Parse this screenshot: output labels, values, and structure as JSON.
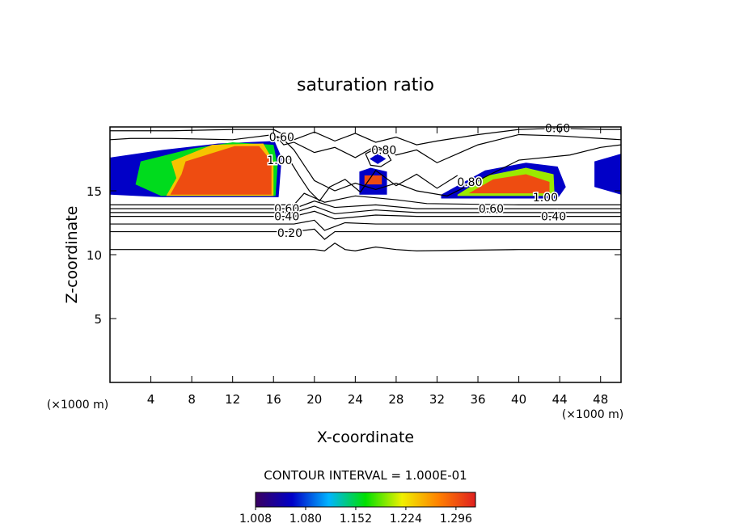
{
  "chart_data": {
    "type": "contour",
    "title": "saturation ratio",
    "x_label": "X-coordinate",
    "y_label": "Z-coordinate",
    "x_unit": "(×1000 m)",
    "y_unit": "(×1000 m)",
    "xlim": [
      0,
      50
    ],
    "ylim": [
      0,
      20
    ],
    "xticks": [
      4,
      8,
      12,
      16,
      20,
      24,
      28,
      32,
      36,
      40,
      44,
      48
    ],
    "yticks": [
      5,
      10,
      15
    ],
    "line_color": "#000000",
    "contours": [
      {
        "level": 0.1,
        "x": [
          0,
          10,
          20,
          21,
          22,
          23,
          24,
          26,
          28,
          30,
          40,
          50
        ],
        "y": [
          10.4,
          10.4,
          10.4,
          10.3,
          10.9,
          10.4,
          10.3,
          10.6,
          10.4,
          10.3,
          10.4,
          10.4
        ]
      },
      {
        "level": 0.2,
        "x": [
          0,
          10,
          18,
          20,
          21,
          22,
          24,
          30,
          40,
          50
        ],
        "y": [
          11.8,
          11.8,
          11.8,
          12.0,
          11.2,
          11.8,
          11.8,
          11.8,
          11.8,
          11.8
        ]
      },
      {
        "level": 0.3,
        "x": [
          0,
          10,
          18,
          20,
          21,
          23,
          26,
          30,
          40,
          50
        ],
        "y": [
          12.4,
          12.4,
          12.4,
          12.7,
          11.9,
          12.5,
          12.4,
          12.4,
          12.4,
          12.4
        ]
      },
      {
        "level": 0.4,
        "x": [
          0,
          10,
          18,
          20,
          22,
          26,
          30,
          40,
          50
        ],
        "y": [
          13.0,
          13.0,
          13.0,
          13.4,
          12.8,
          13.1,
          13.0,
          13.0,
          13.0
        ]
      },
      {
        "level": 0.5,
        "x": [
          0,
          10,
          18,
          20,
          22,
          26,
          30,
          40,
          50
        ],
        "y": [
          13.3,
          13.3,
          13.3,
          13.8,
          13.2,
          13.5,
          13.3,
          13.3,
          13.3
        ]
      },
      {
        "level": 0.6,
        "x": [
          0,
          10,
          18,
          20,
          22,
          26,
          30,
          40,
          50
        ],
        "y": [
          13.6,
          13.6,
          13.6,
          14.2,
          13.7,
          13.9,
          13.6,
          13.6,
          13.6
        ]
      },
      {
        "level": 0.7,
        "x": [
          0,
          10,
          18,
          19,
          21,
          24,
          28,
          31,
          40,
          50
        ],
        "y": [
          13.9,
          13.9,
          13.9,
          14.8,
          14.1,
          14.6,
          14.3,
          14.0,
          13.9,
          13.9
        ]
      },
      {
        "level": 0.8,
        "x": [
          0,
          2,
          6,
          12,
          16,
          17,
          18,
          19,
          20,
          22,
          24,
          26,
          28,
          30,
          33,
          36,
          40,
          45,
          48,
          50
        ],
        "y": [
          19.0,
          19.1,
          19.1,
          19.0,
          19.4,
          19.0,
          18.2,
          17.0,
          15.8,
          15.0,
          15.6,
          15.1,
          15.6,
          15.0,
          14.6,
          15.8,
          17.4,
          17.8,
          18.4,
          18.6
        ]
      },
      {
        "level": 0.6,
        "x": [
          0,
          6,
          12,
          16,
          18,
          20,
          22,
          24,
          26,
          28,
          30,
          32,
          36,
          40,
          44,
          48,
          50
        ],
        "y": [
          19.7,
          19.7,
          19.8,
          19.8,
          19.0,
          19.6,
          18.9,
          19.5,
          18.8,
          19.2,
          18.6,
          18.9,
          19.4,
          19.8,
          19.9,
          19.8,
          19.8
        ]
      },
      {
        "level": 0.7,
        "x": [
          16,
          17,
          18,
          20,
          22,
          24,
          26,
          28,
          30,
          32,
          34,
          36,
          38,
          40,
          44,
          48,
          50
        ],
        "y": [
          19.5,
          18.6,
          18.8,
          18.0,
          18.4,
          17.6,
          18.5,
          17.8,
          18.2,
          17.2,
          17.9,
          18.6,
          19.0,
          19.4,
          19.3,
          19.1,
          19.0
        ]
      },
      {
        "level": 0.9,
        "x": [
          17.5,
          18.5,
          19.5,
          20.5,
          21.5,
          23,
          24.5,
          26,
          28,
          30,
          32,
          34
        ],
        "y": [
          17.5,
          16.2,
          15.0,
          14.2,
          15.3,
          15.9,
          14.9,
          16.6,
          15.4,
          16.3,
          15.2,
          16.2
        ]
      },
      {
        "level": 0.8,
        "x": [
          25.0,
          26.0,
          27.0,
          27.5,
          26.5,
          25.5,
          25.0
        ],
        "y": [
          17.9,
          18.3,
          18.1,
          17.4,
          16.9,
          17.0,
          17.9
        ]
      }
    ],
    "contour_labels": [
      {
        "value": 0.6,
        "label": "0.60",
        "x": 16.8,
        "y": 19.2
      },
      {
        "value": 1,
        "label": "1.00",
        "x": 16.6,
        "y": 17.4
      },
      {
        "value": 0.8,
        "label": "0.80",
        "x": 26.8,
        "y": 18.2
      },
      {
        "value": 0.8,
        "label": "0.80",
        "x": 35.2,
        "y": 15.7
      },
      {
        "value": 1,
        "label": "1.00",
        "x": 42.6,
        "y": 14.5
      },
      {
        "value": 0.6,
        "label": "0.60",
        "x": 17.3,
        "y": 13.6
      },
      {
        "value": 0.4,
        "label": "0.40",
        "x": 17.3,
        "y": 13.0
      },
      {
        "value": 0.2,
        "label": "0.20",
        "x": 17.6,
        "y": 11.7
      },
      {
        "value": 0.6,
        "label": "0.60",
        "x": 37.3,
        "y": 13.6
      },
      {
        "value": 0.4,
        "label": "0.40",
        "x": 43.4,
        "y": 13.0
      },
      {
        "value": 0.6,
        "label": "0.60",
        "x": 43.8,
        "y": 19.9
      }
    ],
    "regions": [
      {
        "level": 1.06,
        "x": [
          0,
          5.1,
          10.6,
          16.1,
          16.8,
          16.5,
          5.1,
          0
        ],
        "y": [
          17.6,
          18.2,
          18.7,
          18.9,
          17.6,
          14.5,
          14.5,
          14.7
        ]
      },
      {
        "level": 1.16,
        "x": [
          3,
          8,
          12,
          16,
          16.4,
          16.2,
          5,
          2.5
        ],
        "y": [
          17.3,
          18.3,
          18.8,
          18.6,
          17,
          14.6,
          14.6,
          15.5
        ]
      },
      {
        "level": 1.24,
        "x": [
          6,
          10,
          15,
          16,
          16,
          5.5,
          6.5
        ],
        "y": [
          17.3,
          18.6,
          18.7,
          17.3,
          14.6,
          14.6,
          16
        ]
      },
      {
        "level": 1.3,
        "x": [
          7.4,
          12.2,
          14.6,
          15.8,
          15.8,
          5.9,
          7.0
        ],
        "y": [
          17.3,
          18.5,
          18.5,
          17.3,
          14.7,
          14.7,
          16.3
        ]
      },
      {
        "level": 1.06,
        "x": [
          32.4,
          36.7,
          40.7,
          43.8,
          44.6,
          43.8,
          32.4
        ],
        "y": [
          14.7,
          16.6,
          17.2,
          16.9,
          15.3,
          14.4,
          14.4
        ]
      },
      {
        "level": 1.2,
        "x": [
          34,
          37,
          40.7,
          43.4,
          43.5,
          34
        ],
        "y": [
          14.7,
          16.2,
          16.8,
          16.3,
          14.6,
          14.6
        ]
      },
      {
        "level": 1.3,
        "x": [
          35.1,
          37.5,
          40.7,
          43,
          43,
          35.1
        ],
        "y": [
          14.8,
          15.9,
          16.3,
          15.7,
          14.8,
          14.8
        ]
      },
      {
        "level": 1.06,
        "x": [
          47.4,
          50,
          50,
          47.4
        ],
        "y": [
          17.3,
          17.9,
          14.7,
          15.3
        ]
      },
      {
        "level": 1.06,
        "x": [
          24.4,
          25.5,
          27.1,
          27.1,
          24.4
        ],
        "y": [
          16.5,
          16.8,
          16.5,
          14.7,
          14.7
        ]
      },
      {
        "level": 1.3,
        "x": [
          24.9,
          26.6,
          26.6,
          24.9
        ],
        "y": [
          16.2,
          16.2,
          15.5,
          15.5
        ]
      },
      {
        "level": 1.06,
        "x": [
          25.4,
          26.2,
          27.0,
          26.2,
          25.4
        ],
        "y": [
          17.5,
          17.9,
          17.5,
          17.1,
          17.5
        ]
      }
    ],
    "contour_interval": "CONTOUR INTERVAL = 1.000E-01",
    "clim": [
      1.008,
      1.324
    ],
    "colormap": [
      "#3a0060",
      "#0000c8",
      "#00b4ff",
      "#00e000",
      "#f0f000",
      "#ff8000",
      "#e02020"
    ],
    "cticks": [
      1.008,
      {
        "value": 1.08,
        "label": "1.080"
      },
      1.152,
      1.224,
      1.296
    ]
  }
}
